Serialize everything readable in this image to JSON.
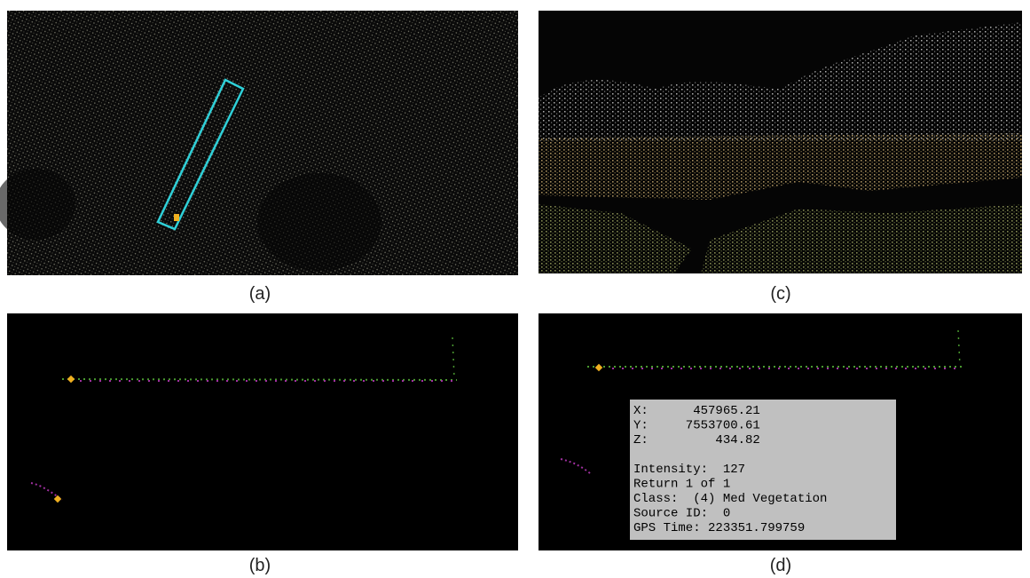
{
  "panels": {
    "a": {
      "label": "(a)"
    },
    "b": {
      "label": "(b)"
    },
    "c": {
      "label": "(c)"
    },
    "d": {
      "label": "(d)"
    }
  },
  "info_box": {
    "lines": [
      "X:      457965.21",
      "Y:     7553700.61",
      "Z:         434.82",
      "Intensity:  127",
      "Return 1 of 1",
      "Class:  (4) Med Vegetation",
      "Source ID:  0",
      "GPS Time: 223351.799759"
    ]
  }
}
